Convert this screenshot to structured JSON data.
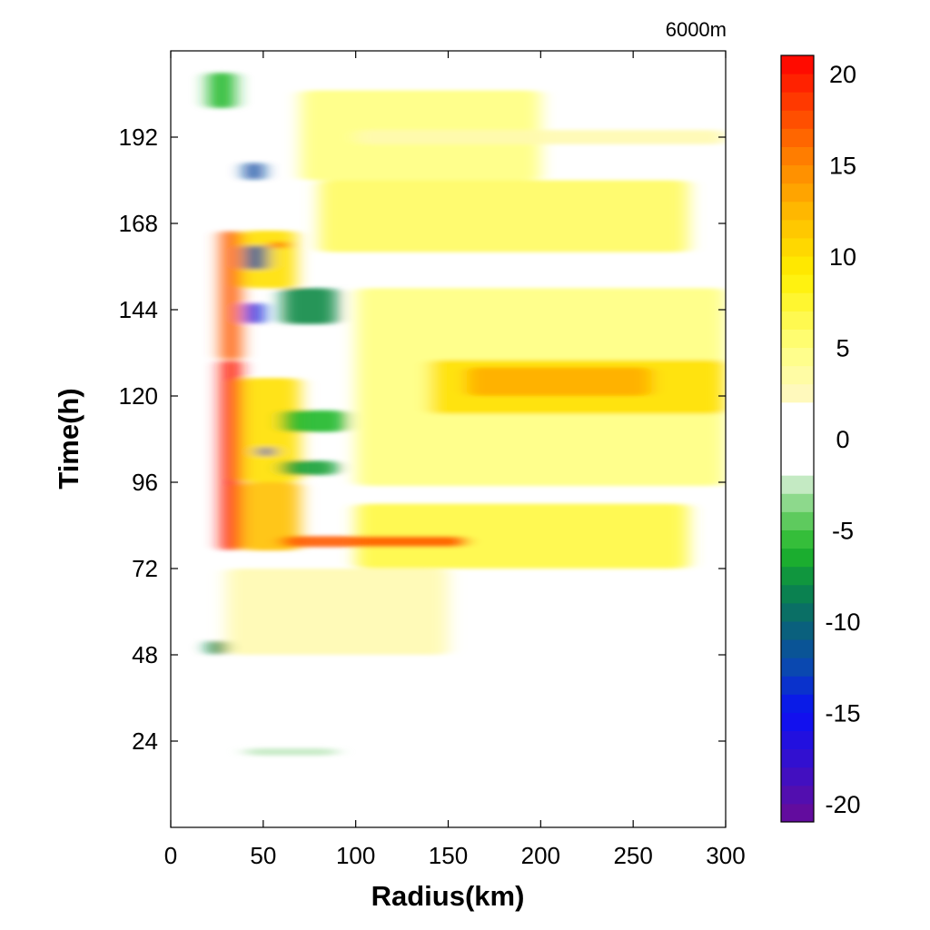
{
  "chart_data": {
    "type": "heatmap",
    "corner_label": "6000m",
    "xlabel": "Radius(km)",
    "ylabel": "Time(h)",
    "xlim": [
      0,
      300
    ],
    "ylim": [
      0,
      216
    ],
    "xticks": [
      0,
      50,
      100,
      150,
      200,
      250,
      300
    ],
    "yticks": [
      24,
      48,
      72,
      96,
      120,
      144,
      168,
      192
    ],
    "colorbar": {
      "range": [
        -21,
        21
      ],
      "ticks": [
        20,
        15,
        10,
        5,
        0,
        -5,
        -10,
        -15,
        -20
      ],
      "white_band": [
        -2,
        2
      ],
      "colors": [
        {
          "v": -21,
          "c": "#6a0b95"
        },
        {
          "v": -18,
          "c": "#3a10c8"
        },
        {
          "v": -15,
          "c": "#0a10f5"
        },
        {
          "v": -12.5,
          "c": "#0a48b0"
        },
        {
          "v": -10,
          "c": "#0a6670"
        },
        {
          "v": -8,
          "c": "#0a8a45"
        },
        {
          "v": -6,
          "c": "#20b828"
        },
        {
          "v": -4,
          "c": "#72d070"
        },
        {
          "v": -2,
          "c": "#dff3df"
        },
        {
          "v": 2,
          "c": "#fff8c8"
        },
        {
          "v": 5,
          "c": "#ffff80"
        },
        {
          "v": 9,
          "c": "#fff000"
        },
        {
          "v": 12,
          "c": "#ffc000"
        },
        {
          "v": 15,
          "c": "#ff8800"
        },
        {
          "v": 18,
          "c": "#ff4400"
        },
        {
          "v": 21,
          "c": "#ff0000"
        }
      ]
    },
    "features": [
      {
        "r0": 27,
        "r1": 38,
        "t0": 77,
        "t1": 130,
        "value": 20
      },
      {
        "r0": 27,
        "r1": 38,
        "t0": 130,
        "t1": 166,
        "value": 17
      },
      {
        "r0": 38,
        "r1": 70,
        "t0": 77,
        "t1": 96,
        "value": 12
      },
      {
        "r0": 38,
        "r1": 70,
        "t0": 96,
        "t1": 125,
        "value": 10
      },
      {
        "r0": 38,
        "r1": 68,
        "t0": 150,
        "t1": 166,
        "value": 10
      },
      {
        "r0": 55,
        "r1": 62,
        "t0": 161,
        "t1": 163,
        "value": 21
      },
      {
        "r0": 40,
        "r1": 50,
        "t0": 140,
        "t1": 146,
        "value": -14
      },
      {
        "r0": 40,
        "r1": 52,
        "t0": 155,
        "t1": 162,
        "value": -12
      },
      {
        "r0": 40,
        "r1": 50,
        "t0": 180,
        "t1": 185,
        "value": -12
      },
      {
        "r0": 48,
        "r1": 55,
        "t0": 103,
        "t1": 106,
        "value": -13
      },
      {
        "r0": 60,
        "r1": 90,
        "t0": 140,
        "t1": 150,
        "value": -8
      },
      {
        "r0": 60,
        "r1": 95,
        "t0": 110,
        "t1": 116,
        "value": -6
      },
      {
        "r0": 60,
        "r1": 90,
        "t0": 98,
        "t1": 102,
        "value": -7
      },
      {
        "r0": 20,
        "r1": 30,
        "t0": 48,
        "t1": 52,
        "value": -8
      },
      {
        "r0": 20,
        "r1": 35,
        "t0": 200,
        "t1": 210,
        "value": -6
      },
      {
        "r0": 60,
        "r1": 160,
        "t0": 78,
        "t1": 81,
        "value": 17
      },
      {
        "r0": 100,
        "r1": 280,
        "t0": 72,
        "t1": 90,
        "value": 7
      },
      {
        "r0": 140,
        "r1": 300,
        "t0": 115,
        "t1": 130,
        "value": 10
      },
      {
        "r0": 160,
        "r1": 260,
        "t0": 120,
        "t1": 128,
        "value": 13
      },
      {
        "r0": 100,
        "r1": 300,
        "t0": 95,
        "t1": 150,
        "value": 5
      },
      {
        "r0": 80,
        "r1": 280,
        "t0": 160,
        "t1": 180,
        "value": 6
      },
      {
        "r0": 70,
        "r1": 200,
        "t0": 180,
        "t1": 205,
        "value": 5
      },
      {
        "r0": 100,
        "r1": 300,
        "t0": 190,
        "t1": 194,
        "value": 3
      },
      {
        "r0": 30,
        "r1": 150,
        "t0": 48,
        "t1": 72,
        "value": 3
      },
      {
        "r0": 40,
        "r1": 90,
        "t0": 20,
        "t1": 22,
        "value": -2.5
      }
    ]
  }
}
